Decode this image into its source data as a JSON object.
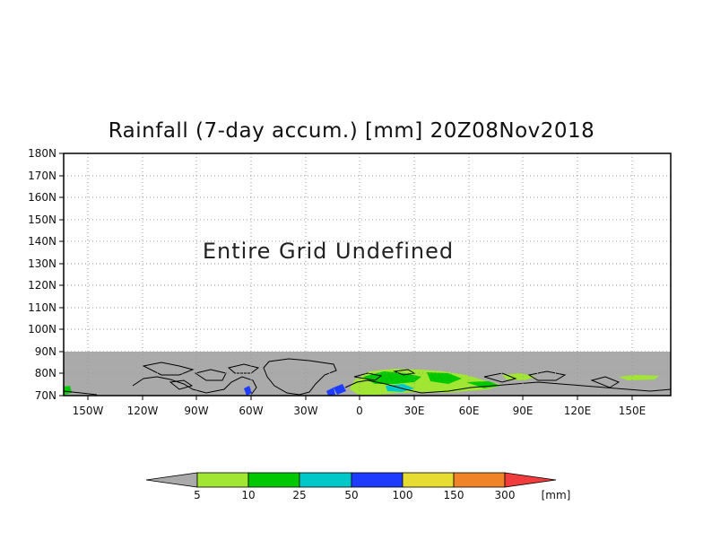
{
  "title": "Rainfall (7-day accum.) [mm] 20Z08Nov2018",
  "message": "Entire Grid Undefined",
  "lat_labels": [
    "180N",
    "170N",
    "160N",
    "150N",
    "140N",
    "130N",
    "120N",
    "110N",
    "100N",
    "90N",
    "80N",
    "70N"
  ],
  "lon_labels": [
    "150W",
    "120W",
    "90W",
    "60W",
    "30W",
    "0",
    "30E",
    "60E",
    "90E",
    "120E",
    "150E"
  ],
  "colorbar": {
    "labels": [
      "5",
      "10",
      "25",
      "50",
      "100",
      "150",
      "300"
    ],
    "unit": "[mm]",
    "colors": [
      "#a0e632",
      "#00c800",
      "#00c8c8",
      "#1e3cff",
      "#e6dc32",
      "#f08228",
      "#f03c3c"
    ],
    "undefined_color": "#aaaaaa"
  },
  "colors": {
    "undefined_region": "#aaaaaa",
    "coastline": "#000000",
    "grid": "#999999"
  }
}
